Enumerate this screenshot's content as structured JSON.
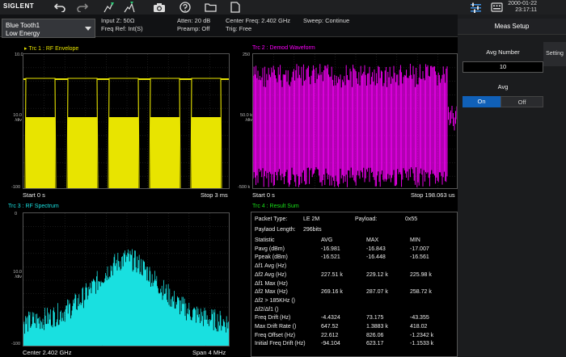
{
  "topbar": {
    "logo": "SIGLENT",
    "date": "2000-01-22",
    "time": "23:17:11"
  },
  "mode": {
    "line1": "Blue Tooth1",
    "line2": "Low Energy"
  },
  "info": {
    "input_z": "Input Z: 50Ω",
    "freq_ref": "Freq Ref: Int(S)",
    "atten": "Atten: 20 dB",
    "preamp": "Preamp: Off",
    "center_freq": "Center Freq: 2.402 GHz",
    "trig": "Trig: Free",
    "sweep": "Sweep: Continue"
  },
  "side_panel": {
    "title": "Meas Setup",
    "avg_number_label": "Avg Number",
    "avg_number_value": "10",
    "avg_label": "Avg",
    "avg_on": "On",
    "avg_off": "Off",
    "setting_tab": "Setting"
  },
  "trace1": {
    "title": "Trc 1 :  RF Envelope",
    "y_top": "10.0",
    "y_mid1": "10.0",
    "y_mid2": "/div",
    "y_bottom": "-100",
    "start": "Start 0 s",
    "stop": "Stop 3 ms",
    "color": "#e8e400"
  },
  "trace2": {
    "title": "Trc 2 :  Demod Waveform",
    "y_top": "250",
    "y_mid1": "50.0 k",
    "y_mid2": "/div",
    "y_bottom": "-500 k",
    "start": "Start 0 s",
    "stop": "Stop 198.063 us",
    "color": "#ff00ff"
  },
  "trace3": {
    "title": "Trc 3 :  RF Spectrum",
    "y_top": "0",
    "y_mid1": "10.0",
    "y_mid2": "/div",
    "y_bottom": "-100",
    "center": "Center 2.402 GHz",
    "span": "Span 4 MHz",
    "color": "#19e0e0"
  },
  "trace4": {
    "title": "Trc 4 :  Result Sum",
    "packet_type_label": "Packet Type:",
    "packet_type_value": "LE 2M",
    "payload_label": "Payload:",
    "payload_value": "0x55",
    "payload_length_label": "Paylaod Length:",
    "payload_length_value": "296bits",
    "headers": [
      "Statistic",
      "AVG",
      "MAX",
      "MIN"
    ],
    "rows": [
      [
        "Pavg (dBm)",
        "-16.981",
        "-16.843",
        "-17.007"
      ],
      [
        "Ppeak (dBm)",
        "-16.521",
        "-16.448",
        "-16.561"
      ],
      [
        "Δf1 Avg (Hz)",
        "",
        "",
        ""
      ],
      [
        "Δf2 Avg (Hz)",
        "227.51 k",
        "229.12 k",
        "225.98 k"
      ],
      [
        "Δf1 Max (Hz)",
        "",
        "",
        ""
      ],
      [
        "Δf2 Max (Hz)",
        "269.16 k",
        "287.07 k",
        "258.72 k"
      ],
      [
        "Δf2 > 185KHz ()",
        "",
        "",
        ""
      ],
      [
        "Δf2/Δf1 ()",
        "",
        "",
        ""
      ],
      [
        "Freq Drift (Hz)",
        "-4.4324",
        "73.175",
        "-43.355"
      ],
      [
        "Max Drift Rate ()",
        "647.52",
        "1.3883 k",
        "418.02"
      ],
      [
        "Freq Offset (Hz)",
        "22.612",
        "826.06",
        "-1.2342 k"
      ],
      [
        "Initial Freq Drift (Hz)",
        "-94.104",
        "623.17",
        "-1.1533 k"
      ]
    ],
    "color": "#19e019"
  },
  "icons": [
    "undo-icon",
    "redo-icon",
    "marker-icon",
    "peak-icon",
    "camera-icon",
    "help-icon",
    "folder-icon",
    "file-icon",
    "settings-icon",
    "keyboard-icon"
  ]
}
